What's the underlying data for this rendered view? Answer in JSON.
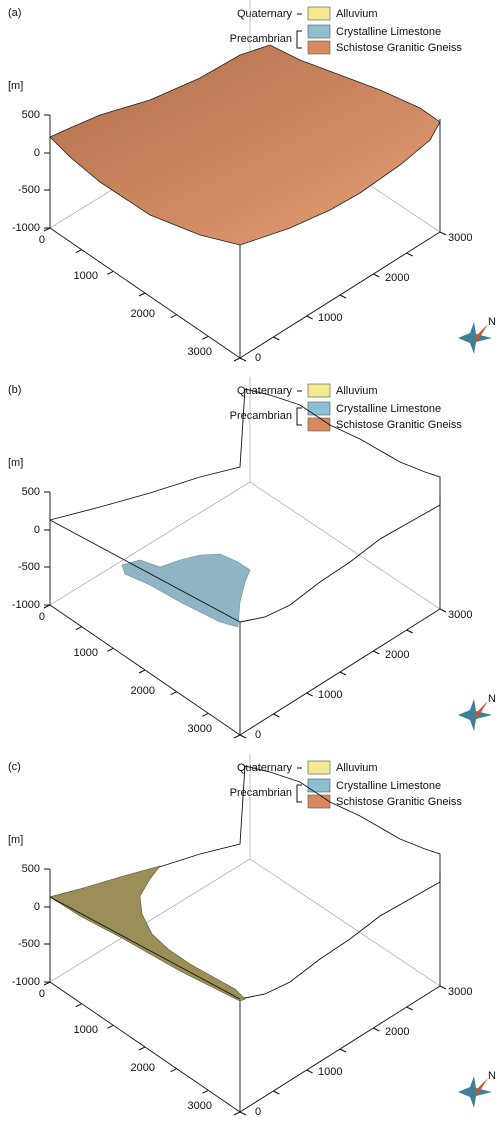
{
  "legend": {
    "groups": [
      {
        "label": "Quaternary",
        "units": [
          "Alluvium"
        ]
      },
      {
        "label": "Precambrian",
        "units": [
          "Crystalline Limestone",
          "Schistose Granitic Gneiss"
        ]
      }
    ]
  },
  "z_axis": {
    "unit": "[m]",
    "ticks": [
      "500",
      "0",
      "-500",
      "-1000"
    ]
  },
  "x_axis": {
    "ticks": [
      "0",
      "1000",
      "2000",
      "3000"
    ]
  },
  "y_axis": {
    "ticks": [
      "0",
      "1000",
      "2000",
      "3000"
    ]
  },
  "north": "N",
  "panels": [
    {
      "label": "(a)"
    },
    {
      "label": "(b)"
    },
    {
      "label": "(c)"
    }
  ]
}
